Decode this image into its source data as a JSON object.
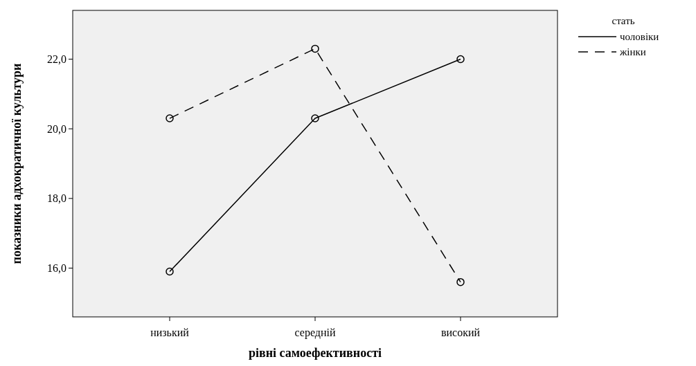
{
  "chart_data": {
    "type": "line",
    "xlabel": "рівні самоефективності",
    "ylabel": "показники адхократичної культури",
    "legend_title": "стать",
    "categories": [
      "низький",
      "середній",
      "високий"
    ],
    "series": [
      {
        "name": "чоловіки",
        "color": "#000000",
        "line_style": "solid",
        "values": [
          15.9,
          20.3,
          22.0
        ]
      },
      {
        "name": "жінки",
        "color": "#000000",
        "line_style": "dashed",
        "values": [
          20.3,
          22.3,
          15.6
        ]
      }
    ],
    "ylim": [
      14.6,
      23.4
    ],
    "yticks": [
      {
        "value": 16,
        "label": "16,0"
      },
      {
        "value": 18,
        "label": "18,0"
      },
      {
        "value": 20,
        "label": "20,0"
      },
      {
        "value": 22,
        "label": "22,0"
      }
    ],
    "grid": false,
    "legend": "top right",
    "marker": "circle"
  }
}
